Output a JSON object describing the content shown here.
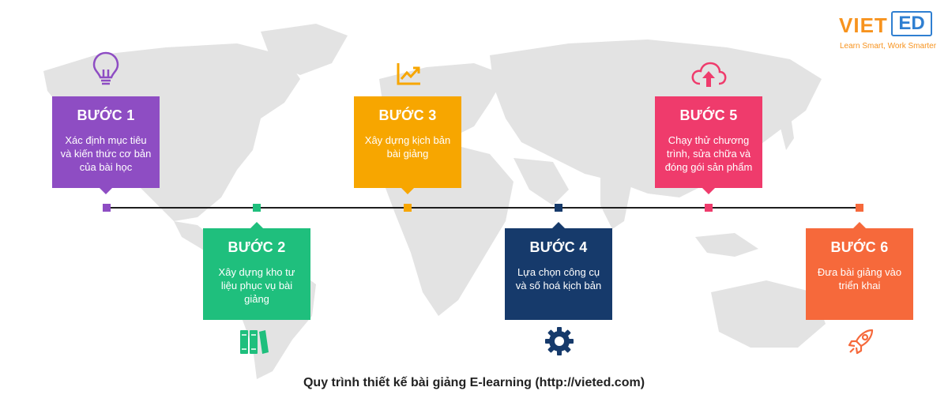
{
  "logo": {
    "viet": "VIET",
    "ed": "ED",
    "tagline": "Learn Smart, Work Smarter"
  },
  "steps": [
    {
      "title": "BƯỚC 1",
      "desc": "Xác định mục tiêu và kiến thức cơ bản của bài học",
      "color": "#8e4dc3",
      "icon": "lightbulb-icon"
    },
    {
      "title": "BƯỚC 2",
      "desc": "Xây dựng kho tư liệu phục vụ bài giảng",
      "color": "#1fbf7d",
      "icon": "books-icon"
    },
    {
      "title": "BƯỚC 3",
      "desc": "Xây dựng kịch bản bài giảng",
      "color": "#f7a600",
      "icon": "growth-chart-icon"
    },
    {
      "title": "BƯỚC 4",
      "desc": "Lựa chọn công cụ và số hoá kịch bản",
      "color": "#163a6b",
      "icon": "gear-icon"
    },
    {
      "title": "BƯỚC 5",
      "desc": "Chạy thử chương trình, sửa chữa và đóng gói sản phẩm",
      "color": "#ef3b6c",
      "icon": "cloud-upload-icon"
    },
    {
      "title": "BƯỚC 6",
      "desc": "Đưa bài giảng vào triển khai",
      "color": "#f6693b",
      "icon": "rocket-icon"
    }
  ],
  "caption": "Quy trình thiết kế bài giảng E-learning (http://vieted.com)"
}
